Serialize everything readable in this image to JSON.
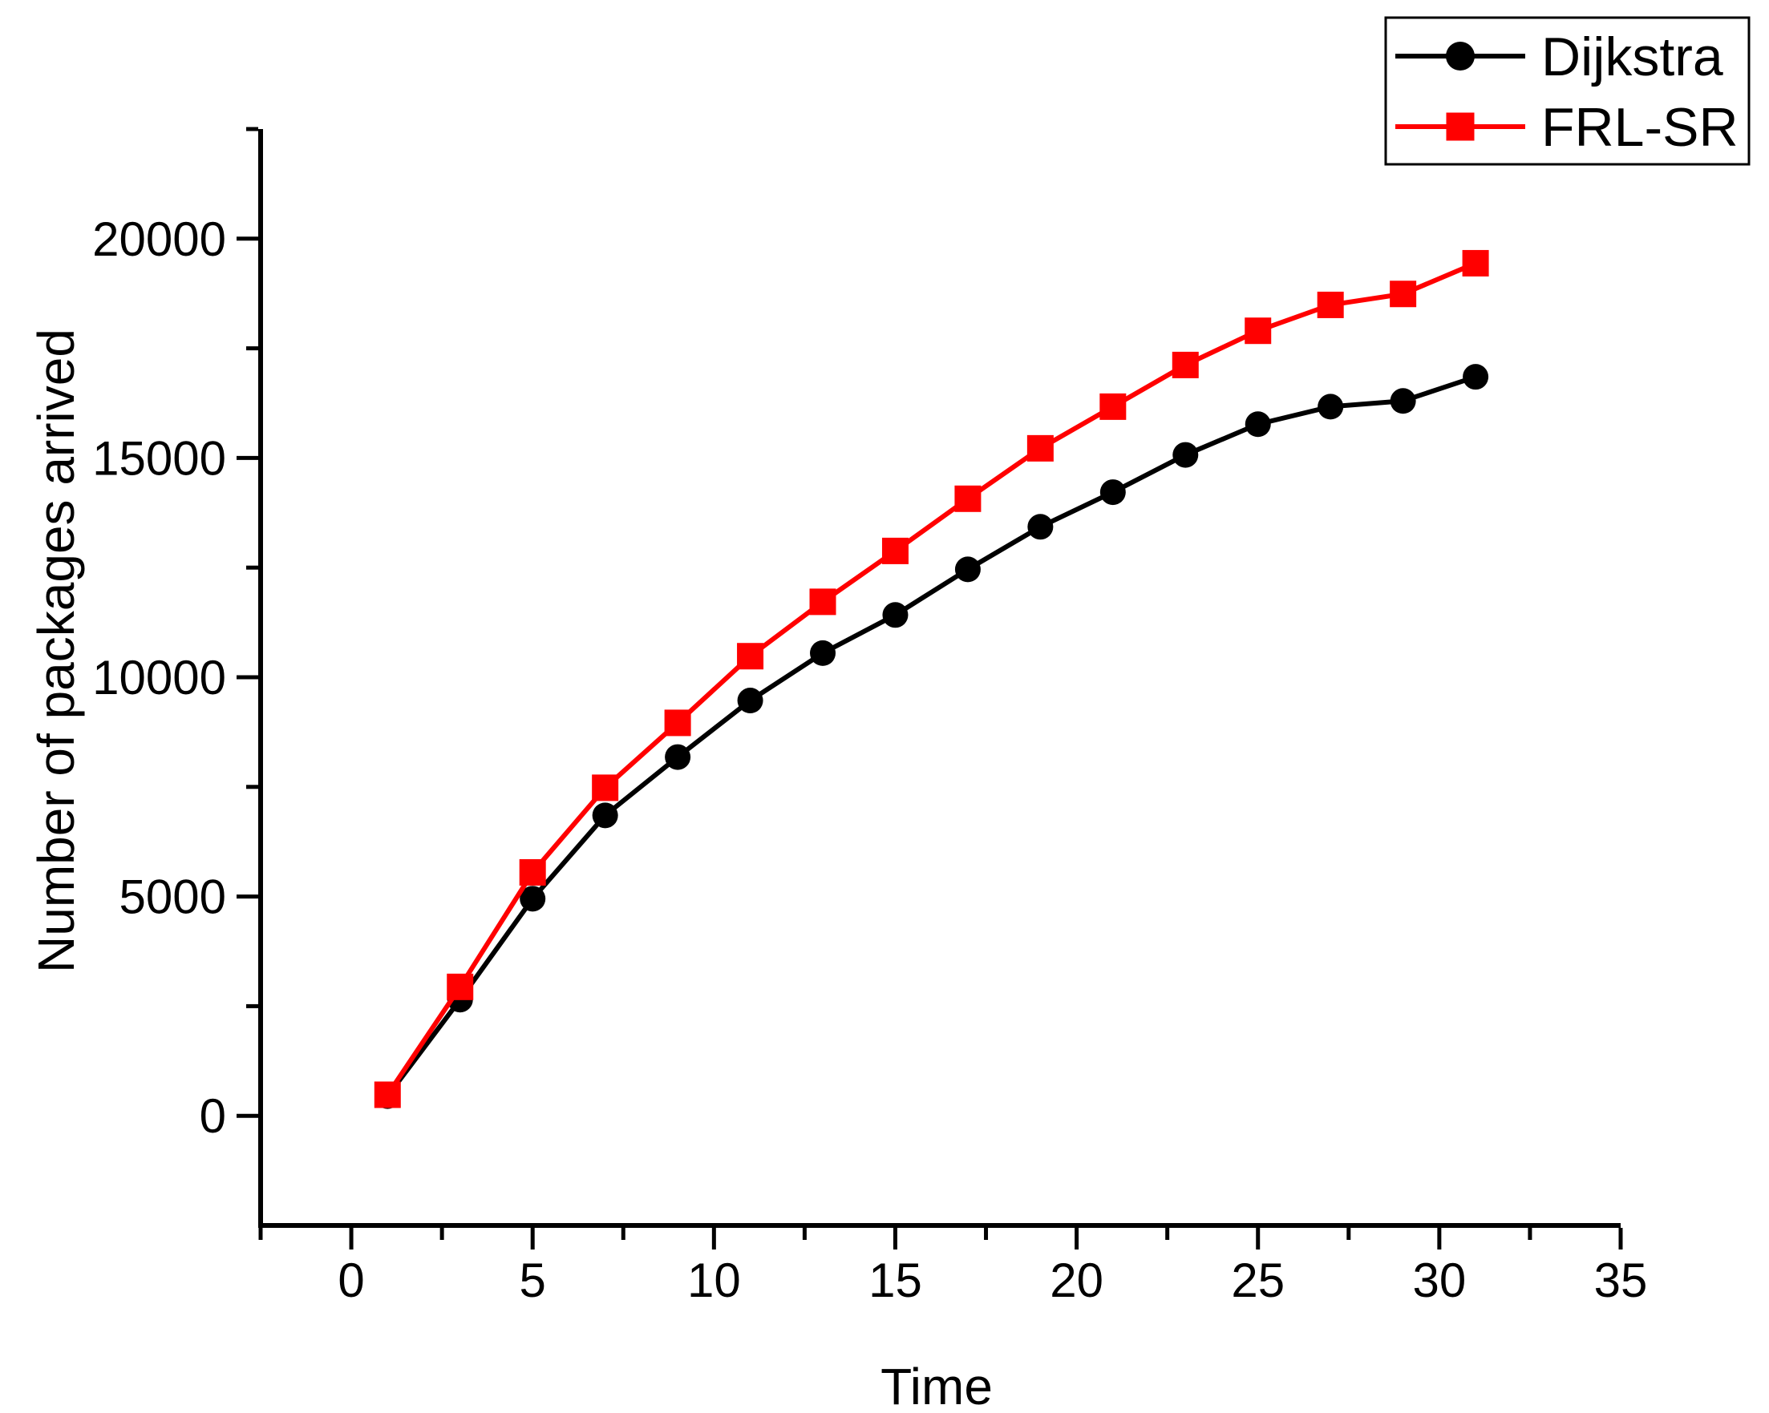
{
  "figure": {
    "background": "#ffffff",
    "axis_color": "#000000"
  },
  "chart_data": {
    "type": "line",
    "title": "",
    "xlabel": "Time",
    "ylabel": "Number of packages arrived",
    "grid": false,
    "legend_position": "top-right",
    "xlim": [
      -2.5,
      35
    ],
    "ylim": [
      -2500,
      22500
    ],
    "x_major_ticks": [
      0,
      5,
      10,
      15,
      20,
      25,
      30,
      35
    ],
    "x_minor_ticks": [
      -2.5,
      2.5,
      7.5,
      12.5,
      17.5,
      22.5,
      27.5,
      32.5
    ],
    "y_major_ticks": [
      0,
      5000,
      10000,
      15000,
      20000
    ],
    "y_minor_ticks": [
      2500,
      7500,
      12500,
      17500,
      22500
    ],
    "x": [
      1,
      3,
      5,
      7,
      9,
      11,
      13,
      15,
      17,
      19,
      21,
      23,
      25,
      27,
      29,
      31
    ],
    "series": [
      {
        "name": "Dijkstra",
        "color": "#000000",
        "marker": "circle",
        "values": [
          450,
          2650,
          4950,
          6850,
          8180,
          9470,
          10550,
          11420,
          12460,
          13430,
          14220,
          15070,
          15770,
          16170,
          16300,
          16850
        ]
      },
      {
        "name": "FRL-SR",
        "color": "#ff0000",
        "marker": "square",
        "values": [
          480,
          2940,
          5550,
          7480,
          8960,
          10480,
          11720,
          12880,
          14070,
          15220,
          16170,
          17120,
          17900,
          18490,
          18740,
          19440
        ]
      }
    ]
  }
}
